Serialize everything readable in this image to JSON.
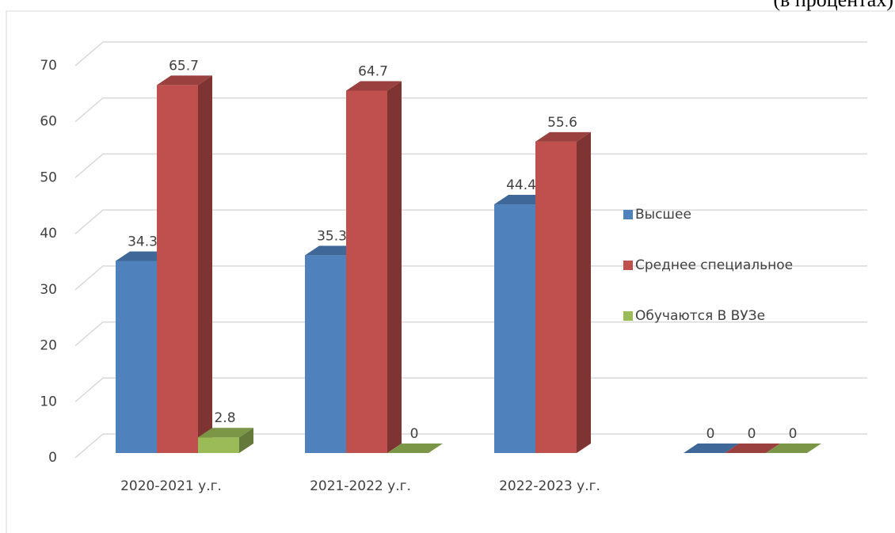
{
  "chart_data": {
    "type": "bar3d",
    "subtitle": "(в процентах)",
    "categories": [
      "2020-2021 у.г.",
      "2021-2022 у.г.",
      "2022-2023 у.г.",
      null
    ],
    "series": [
      {
        "name": "Высшее",
        "color": "#4f81bd",
        "values": [
          34.3,
          35.3,
          44.4,
          0
        ]
      },
      {
        "name": "Среднее специальное",
        "color": "#c0504d",
        "values": [
          65.7,
          64.7,
          55.6,
          0
        ]
      },
      {
        "name": "Обучаются В ВУЗе",
        "color": "#9bbb59",
        "values": [
          2.8,
          0,
          null,
          0
        ]
      }
    ],
    "ylim": [
      0,
      70
    ],
    "yticks": [
      0,
      10,
      20,
      30,
      40,
      50,
      60,
      70
    ],
    "grid": true,
    "legend": "right"
  }
}
